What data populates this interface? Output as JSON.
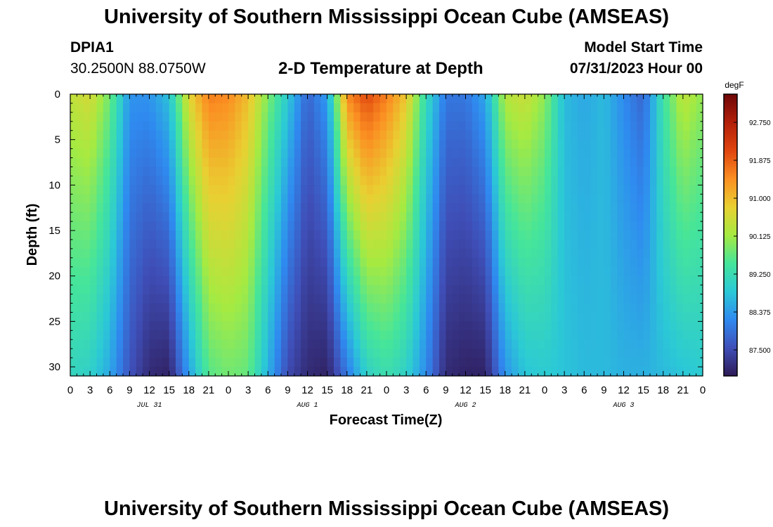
{
  "header": {
    "title": "University of Southern Mississippi Ocean Cube (AMSEAS)",
    "station": "DPIA1",
    "coords": "30.2500N  88.0750W",
    "subtitle": "2-D Temperature at Depth",
    "model_start_label": "Model Start Time",
    "model_start_value": "07/31/2023 Hour 00"
  },
  "footer": {
    "title": "University of Southern Mississippi Ocean Cube (AMSEAS)"
  },
  "chart_data": {
    "type": "heatmap",
    "title": "2-D Temperature at Depth",
    "xlabel": "Forecast Time(Z)",
    "ylabel": "Depth (ft)",
    "x_hours_range": [
      0,
      96
    ],
    "y_range": [
      0,
      31
    ],
    "y_reversed": true,
    "x_tick_labels": [
      "0",
      "3",
      "6",
      "9",
      "12",
      "15",
      "18",
      "21",
      "0",
      "3",
      "6",
      "9",
      "12",
      "15",
      "18",
      "21",
      "0",
      "3",
      "6",
      "9",
      "12",
      "15",
      "18",
      "21",
      "0",
      "3",
      "6",
      "9",
      "12",
      "15",
      "18",
      "21",
      "0"
    ],
    "y_ticks": [
      0,
      5,
      10,
      15,
      20,
      25,
      30
    ],
    "day_labels": [
      {
        "text": "JUL 31",
        "hour": 12
      },
      {
        "text": "AUG 1",
        "hour": 36
      },
      {
        "text": "AUG 2",
        "hour": 60
      },
      {
        "text": "AUG 3",
        "hour": 84
      }
    ],
    "colorbar": {
      "unit": "degF",
      "min": 86.9,
      "max": 93.4,
      "tick_labels": [
        "92.750",
        "91.875",
        "91.000",
        "90.125",
        "89.250",
        "88.375",
        "87.500"
      ],
      "tick_values": [
        92.75,
        91.875,
        91.0,
        90.125,
        89.25,
        88.375,
        87.5
      ],
      "colors": [
        "#2e1b57",
        "#3f4fb8",
        "#2f8af0",
        "#2bc9d6",
        "#46e59a",
        "#a6ea41",
        "#e9d032",
        "#fb8f22",
        "#e0450f",
        "#b2200a",
        "#6e0707"
      ]
    },
    "surface_profile": {
      "hours": [
        0,
        3,
        6,
        9,
        12,
        15,
        18,
        21,
        24,
        27,
        30,
        33,
        36,
        39,
        42,
        45,
        48,
        51,
        54,
        57,
        60,
        63,
        66,
        69,
        72,
        75,
        78,
        81,
        84,
        87,
        90,
        93,
        96
      ],
      "temps": [
        90.4,
        90.6,
        89.8,
        88.3,
        88.3,
        88.8,
        90.7,
        91.6,
        91.5,
        91.0,
        89.9,
        88.9,
        87.8,
        88.4,
        91.5,
        92.1,
        91.6,
        90.9,
        89.2,
        88.0,
        88.0,
        88.5,
        90.3,
        90.5,
        90.0,
        88.7,
        88.5,
        88.7,
        88.2,
        87.8,
        89.4,
        90.4,
        90.0
      ]
    },
    "bottom_profile": {
      "hours": [
        0,
        3,
        6,
        9,
        12,
        15,
        18,
        21,
        24,
        27,
        30,
        33,
        36,
        39,
        42,
        45,
        48,
        51,
        54,
        57,
        60,
        63,
        66,
        69,
        72,
        75,
        78,
        81,
        84,
        87,
        90,
        93,
        96
      ],
      "temps": [
        89.1,
        89.0,
        88.5,
        87.6,
        87.1,
        87.0,
        88.4,
        89.6,
        89.8,
        89.7,
        88.6,
        87.5,
        87.1,
        87.0,
        88.0,
        89.0,
        89.3,
        89.0,
        88.2,
        87.1,
        87.0,
        87.0,
        88.3,
        88.8,
        88.9,
        88.8,
        88.7,
        88.7,
        88.6,
        88.6,
        88.7,
        88.8,
        88.9
      ]
    }
  }
}
